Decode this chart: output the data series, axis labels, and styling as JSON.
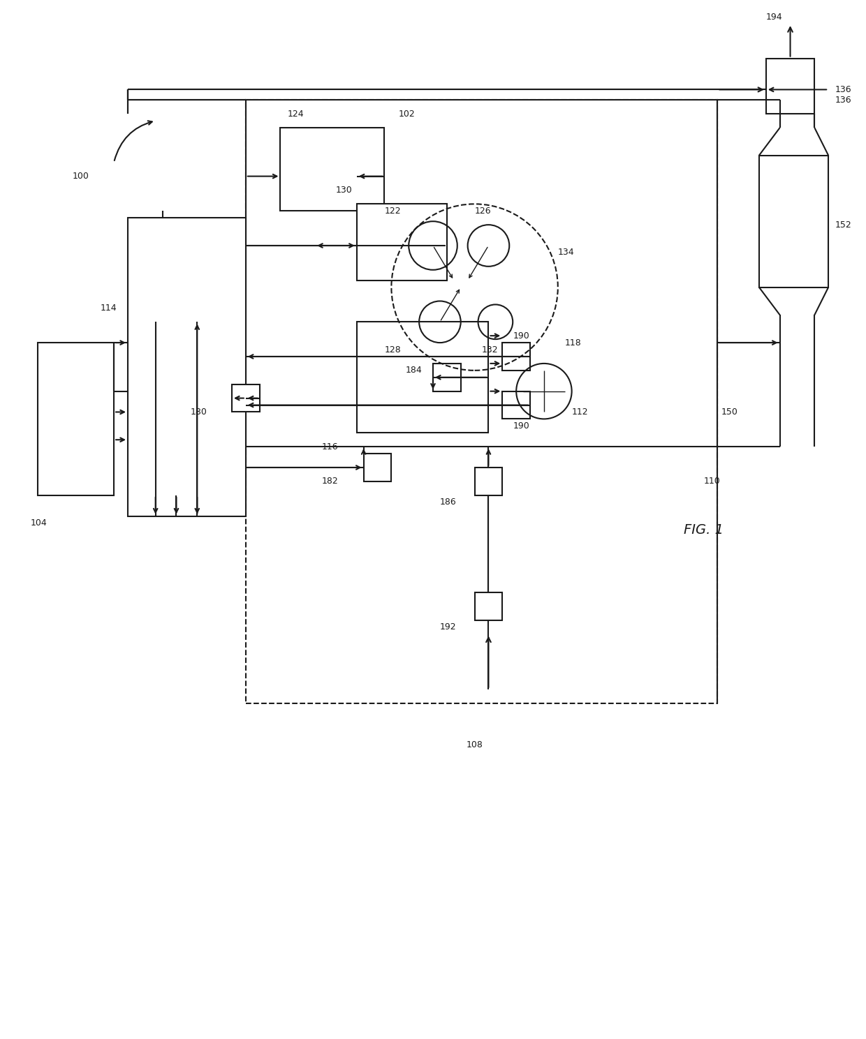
{
  "bg": "#ffffff",
  "lc": "#1a1a1a",
  "fw": 12.4,
  "fh": 14.89,
  "dpi": 100,
  "xmax": 124,
  "ymax": 149
}
